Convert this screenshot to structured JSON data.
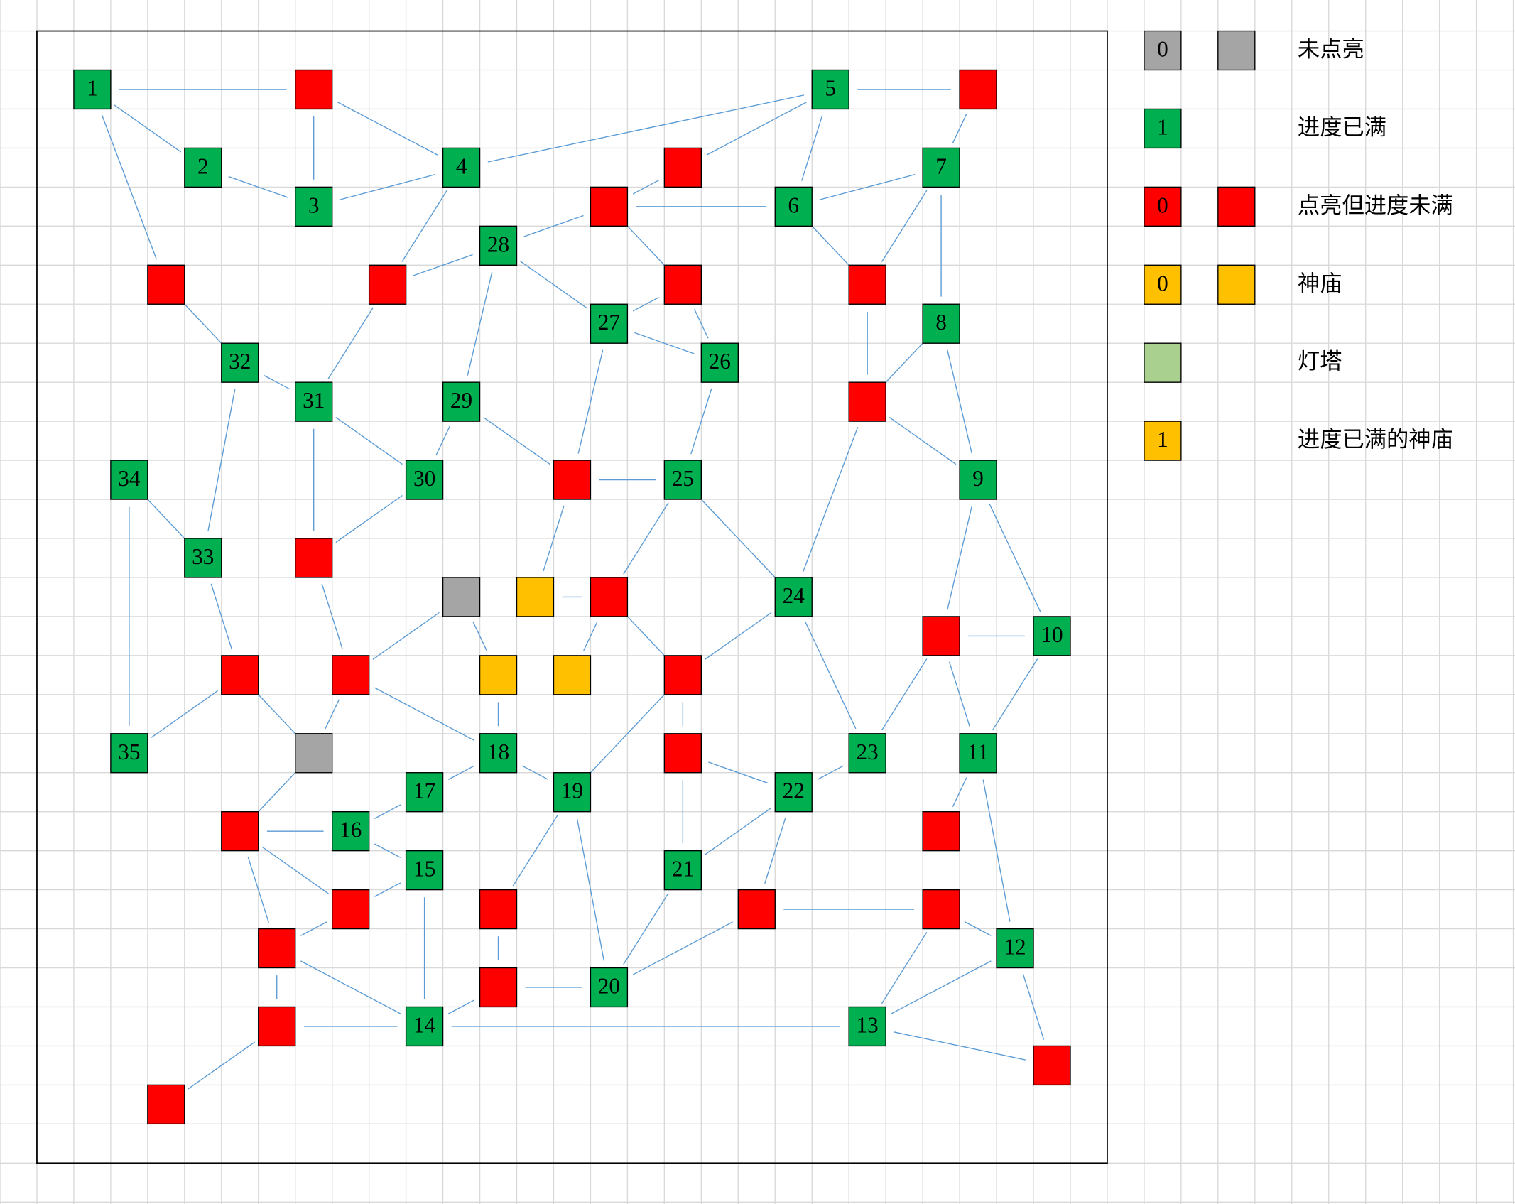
{
  "node_labels": [
    "1",
    "2",
    "3",
    "4",
    "5",
    "6",
    "7",
    "8",
    "9",
    "10",
    "11",
    "12",
    "13",
    "14",
    "15",
    "16",
    "17",
    "18",
    "19",
    "20",
    "21",
    "22",
    "23",
    "24",
    "25",
    "26",
    "27",
    "28",
    "29",
    "30",
    "31",
    "32",
    "33",
    "34",
    "35"
  ],
  "legend": [
    {
      "sample": "0",
      "label": "未点亮"
    },
    {
      "sample": "1",
      "label": "进度已满"
    },
    {
      "sample": "0",
      "label": "点亮但进度未满"
    },
    {
      "sample": "0",
      "label": "神庙"
    },
    {
      "label": "灯塔"
    },
    {
      "sample": "1",
      "label": "进度已满的神庙"
    }
  ]
}
